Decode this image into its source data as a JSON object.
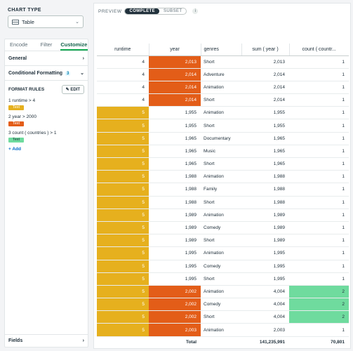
{
  "chart_type": {
    "label": "CHART TYPE",
    "selected": "Table"
  },
  "panel_tabs": [
    {
      "label": "Encode"
    },
    {
      "label": "Filter"
    },
    {
      "label": "Customize"
    }
  ],
  "sections": {
    "general": "General",
    "conditional_formatting": "Conditional Formatting",
    "cf_count": "3",
    "fields": "Fields"
  },
  "format_rules": {
    "title": "FORMAT RULES",
    "edit_label": "EDIT",
    "rules": [
      {
        "text": "1 runtime > 4",
        "swatch_text": "Text",
        "color": "#e6b01e"
      },
      {
        "text": "2 year > 2000",
        "swatch_text": "Text",
        "color": "#e35d18"
      },
      {
        "text": "3 count ( countries ) > 1",
        "swatch_text": "Text",
        "color": "#6fdb9e"
      }
    ],
    "add_label": "+ Add"
  },
  "preview": {
    "label": "PREVIEW",
    "complete": "COMPLETE",
    "subset": "SUBSET",
    "info": "i"
  },
  "colors": {
    "runtime_highlight": "#e6b01e",
    "year_highlight": "#e35d18",
    "count_highlight": "#6fdb9e",
    "accent": "#13aa52"
  },
  "table": {
    "columns": [
      "runtime",
      "year",
      "genres",
      "sum ( year )",
      "count ( countr..."
    ],
    "rows": [
      [
        "4",
        "2,013",
        "Short",
        "2,013",
        "1"
      ],
      [
        "4",
        "2,014",
        "Adventure",
        "2,014",
        "1"
      ],
      [
        "4",
        "2,014",
        "Animation",
        "2,014",
        "1"
      ],
      [
        "4",
        "2,014",
        "Short",
        "2,014",
        "1"
      ],
      [
        "5",
        "1,955",
        "Animation",
        "1,955",
        "1"
      ],
      [
        "5",
        "1,955",
        "Short",
        "1,955",
        "1"
      ],
      [
        "5",
        "1,965",
        "Documentary",
        "1,965",
        "1"
      ],
      [
        "5",
        "1,965",
        "Music",
        "1,965",
        "1"
      ],
      [
        "5",
        "1,965",
        "Short",
        "1,965",
        "1"
      ],
      [
        "5",
        "1,988",
        "Animation",
        "1,988",
        "1"
      ],
      [
        "5",
        "1,988",
        "Family",
        "1,988",
        "1"
      ],
      [
        "5",
        "1,988",
        "Short",
        "1,988",
        "1"
      ],
      [
        "5",
        "1,989",
        "Animation",
        "1,989",
        "1"
      ],
      [
        "5",
        "1,989",
        "Comedy",
        "1,989",
        "1"
      ],
      [
        "5",
        "1,989",
        "Short",
        "1,989",
        "1"
      ],
      [
        "5",
        "1,995",
        "Animation",
        "1,995",
        "1"
      ],
      [
        "5",
        "1,995",
        "Comedy",
        "1,995",
        "1"
      ],
      [
        "5",
        "1,995",
        "Short",
        "1,995",
        "1"
      ],
      [
        "5",
        "2,002",
        "Animation",
        "4,004",
        "2"
      ],
      [
        "5",
        "2,002",
        "Comedy",
        "4,004",
        "2"
      ],
      [
        "5",
        "2,002",
        "Short",
        "4,004",
        "2"
      ],
      [
        "5",
        "2,003",
        "Animation",
        "2,003",
        "1"
      ]
    ],
    "total": {
      "label": "Total",
      "sum_year": "141,235,991",
      "count": "70,801"
    }
  }
}
